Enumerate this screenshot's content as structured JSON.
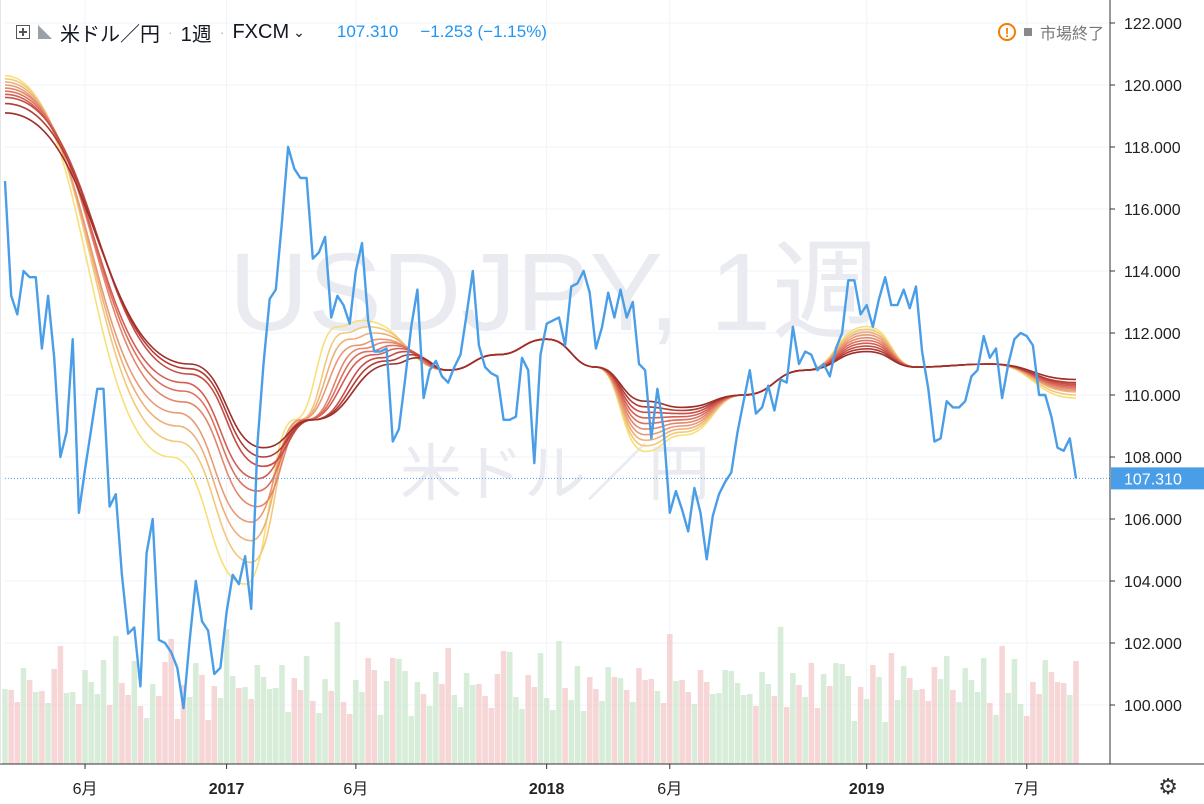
{
  "header": {
    "symbol": "米ドル／円",
    "interval": "1週",
    "exchange": "FXCM",
    "price": "107.310",
    "change": "−1.253 (−1.15%)",
    "status": "市場終了"
  },
  "watermark": {
    "line1": "USDJPY, 1週",
    "line2": "米ドル／円"
  },
  "colors": {
    "price_line": "#4a9ee8",
    "ribbon": [
      "#f7e07a",
      "#f2c97a",
      "#edb07a",
      "#e89a74",
      "#e3866a",
      "#dd7160",
      "#d45e52",
      "#c64e45",
      "#b23c36",
      "#9c2f2a"
    ],
    "vol_up": "#c8e6c9",
    "vol_down": "#f2c4c4"
  },
  "chart_data": {
    "type": "line",
    "title": "USDJPY, 1週",
    "ylim": [
      98.2,
      123
    ],
    "y_ticks": [
      "100.000",
      "102.000",
      "104.000",
      "106.000",
      "108.000",
      "110.000",
      "112.000",
      "114.000",
      "116.000",
      "118.000",
      "120.000",
      "122.000"
    ],
    "x_ticks": [
      {
        "label": "6月",
        "week": 13
      },
      {
        "label": "2017",
        "week": 36
      },
      {
        "label": "6月",
        "week": 57
      },
      {
        "label": "2018",
        "week": 88
      },
      {
        "label": "6月",
        "week": 108
      },
      {
        "label": "2019",
        "week": 140
      },
      {
        "label": "7月",
        "week": 166
      }
    ],
    "last_price": 107.31,
    "last_price_label": "107.310",
    "price_series": {
      "name": "米ドル／円",
      "values": [
        116.9,
        113.2,
        112.6,
        114.0,
        113.8,
        113.8,
        111.5,
        113.2,
        111.2,
        108.0,
        108.8,
        111.8,
        106.2,
        107.6,
        108.9,
        110.2,
        110.2,
        106.4,
        106.8,
        104.2,
        102.3,
        102.5,
        100.6,
        104.9,
        106.0,
        102.1,
        102.0,
        101.7,
        101.2,
        99.9,
        102.1,
        104.0,
        102.7,
        102.4,
        101.0,
        101.2,
        103.0,
        104.2,
        103.9,
        104.8,
        103.1,
        108.4,
        111.0,
        113.1,
        113.4,
        115.6,
        118.0,
        117.3,
        117.0,
        117.0,
        114.4,
        114.6,
        115.1,
        112.5,
        113.2,
        112.9,
        112.3,
        114.0,
        114.9,
        112.4,
        111.4,
        111.4,
        111.5,
        108.5,
        108.9,
        110.5,
        112.2,
        113.4,
        109.9,
        110.8,
        111.1,
        110.6,
        110.4,
        110.9,
        111.3,
        112.6,
        114.0,
        111.6,
        110.9,
        110.7,
        110.6,
        109.2,
        109.2,
        109.3,
        111.2,
        110.8,
        107.8,
        111.3,
        112.3,
        112.4,
        112.5,
        111.6,
        113.5,
        113.6,
        114.0,
        113.3,
        111.5,
        112.2,
        113.3,
        112.5,
        113.4,
        112.5,
        113.0,
        111.0,
        110.8,
        108.6,
        110.2,
        108.9,
        106.2,
        106.9,
        106.3,
        105.6,
        107.0,
        106.2,
        104.7,
        106.1,
        106.8,
        107.2,
        107.5,
        108.8,
        109.8,
        110.8,
        109.4,
        109.6,
        110.3,
        109.5,
        110.5,
        110.4,
        112.2,
        111.0,
        111.4,
        111.3,
        110.8,
        111.0,
        110.6,
        111.5,
        112.0,
        113.7,
        113.7,
        112.6,
        112.9,
        112.2,
        113.1,
        113.8,
        112.9,
        112.9,
        113.4,
        112.8,
        113.5,
        111.4,
        110.2,
        108.5,
        108.6,
        109.8,
        109.6,
        109.6,
        109.8,
        110.6,
        110.8,
        111.9,
        111.2,
        111.5,
        109.9,
        111.0,
        111.8,
        112.0,
        111.9,
        111.6,
        110.0,
        110.0,
        109.3,
        108.3,
        108.2,
        108.6,
        107.31
      ]
    },
    "ribbon_series": [
      {
        "start": 120.3,
        "min": 103.9,
        "min_week": 39,
        "peak": 112.4,
        "peak_week": 58
      },
      {
        "start": 120.2,
        "min": 104.6,
        "min_week": 40,
        "peak": 112.2,
        "peak_week": 59
      },
      {
        "start": 120.1,
        "min": 105.3,
        "min_week": 40,
        "peak": 112.0,
        "peak_week": 60
      },
      {
        "start": 120.0,
        "min": 105.9,
        "min_week": 40,
        "peak": 111.8,
        "peak_week": 61
      },
      {
        "start": 119.9,
        "min": 106.4,
        "min_week": 41,
        "peak": 111.7,
        "peak_week": 62
      },
      {
        "start": 119.8,
        "min": 106.9,
        "min_week": 41,
        "peak": 111.6,
        "peak_week": 63
      },
      {
        "start": 119.7,
        "min": 107.3,
        "min_week": 41,
        "peak": 111.5,
        "peak_week": 64
      },
      {
        "start": 119.6,
        "min": 107.7,
        "min_week": 42,
        "peak": 111.4,
        "peak_week": 65
      },
      {
        "start": 119.4,
        "min": 108.0,
        "min_week": 42,
        "peak": 111.3,
        "peak_week": 66
      },
      {
        "start": 119.1,
        "min": 108.3,
        "min_week": 42,
        "peak": 111.2,
        "peak_week": 67
      }
    ]
  }
}
